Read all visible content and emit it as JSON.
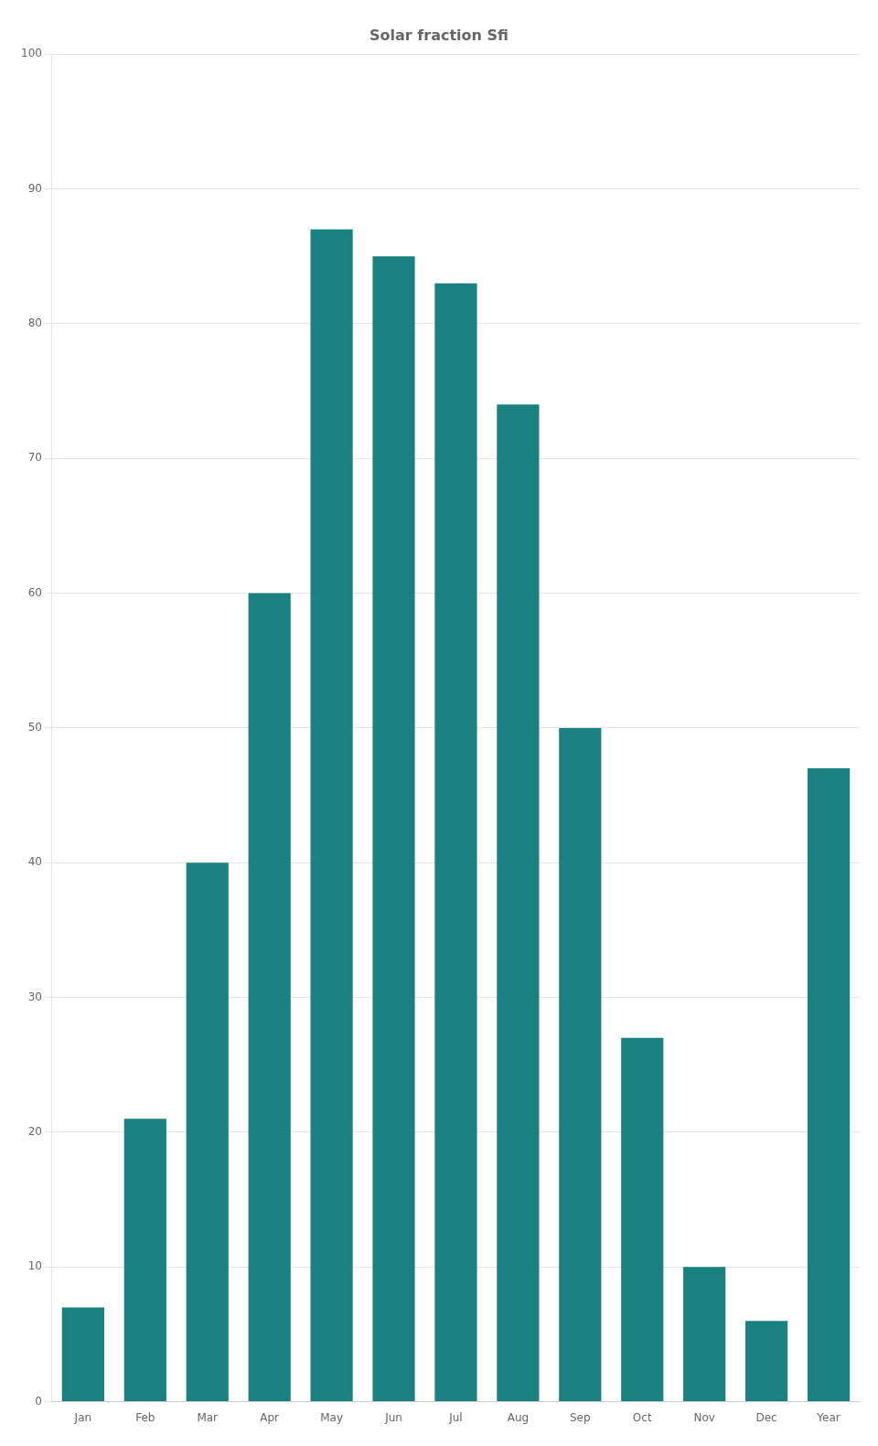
{
  "chart_data": {
    "type": "bar",
    "title": "Solar fraction Sfi",
    "categories": [
      "Jan",
      "Feb",
      "Mar",
      "Apr",
      "May",
      "Jun",
      "Jul",
      "Aug",
      "Sep",
      "Oct",
      "Nov",
      "Dec",
      "Year"
    ],
    "values": [
      7,
      21,
      40,
      60,
      87,
      85,
      83,
      74,
      50,
      27,
      10,
      6,
      47
    ],
    "color": "#1a8080",
    "ylim": [
      0,
      100
    ],
    "yticks": [
      0,
      10,
      20,
      30,
      40,
      50,
      60,
      70,
      80,
      90,
      100
    ],
    "grid": true
  }
}
